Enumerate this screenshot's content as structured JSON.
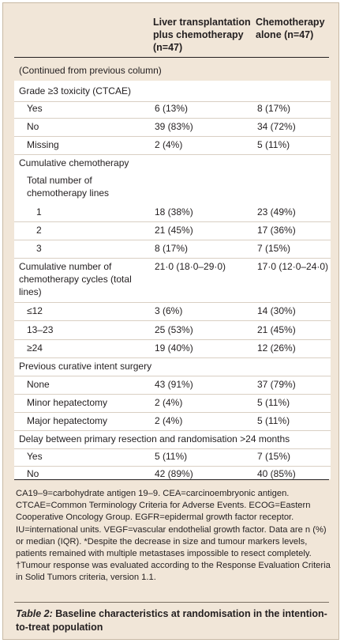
{
  "header": {
    "col1": "Liver transplantation plus chemotherapy (n=47)",
    "col2": "Chemotherapy alone (n=47)"
  },
  "continued": "(Continued from previous column)",
  "rows": [
    {
      "label": "Grade ≥3 toxicity (CTCAE)",
      "v1": "",
      "v2": ""
    },
    {
      "label": "Yes",
      "v1": "6 (13%)",
      "v2": "8 (17%)"
    },
    {
      "label": "No",
      "v1": "39 (83%)",
      "v2": "34 (72%)"
    },
    {
      "label": "Missing",
      "v1": "2 (4%)",
      "v2": "5 (11%)"
    },
    {
      "label": "Cumulative chemotherapy",
      "v1": "",
      "v2": ""
    },
    {
      "label": "Total number of chemotherapy lines",
      "v1": "",
      "v2": ""
    },
    {
      "label": "1",
      "v1": "18 (38%)",
      "v2": "23 (49%)"
    },
    {
      "label": "2",
      "v1": "21 (45%)",
      "v2": "17 (36%)"
    },
    {
      "label": "3",
      "v1": "8 (17%)",
      "v2": "7 (15%)"
    },
    {
      "label": "Cumulative number of chemotherapy cycles (total lines)",
      "v1": "21·0 (18·0–29·0)",
      "v2": "17·0 (12·0–24·0)"
    },
    {
      "label": "≤12",
      "v1": "3 (6%)",
      "v2": "14 (30%)"
    },
    {
      "label": "13–23",
      "v1": "25 (53%)",
      "v2": "21 (45%)"
    },
    {
      "label": "≥24",
      "v1": "19 (40%)",
      "v2": "12 (26%)"
    },
    {
      "label": "Previous curative intent surgery",
      "v1": "",
      "v2": ""
    },
    {
      "label": "None",
      "v1": "43 (91%)",
      "v2": "37 (79%)"
    },
    {
      "label": "Minor hepatectomy",
      "v1": "2 (4%)",
      "v2": "5 (11%)"
    },
    {
      "label": "Major hepatectomy",
      "v1": "2 (4%)",
      "v2": "5 (11%)"
    },
    {
      "label": "Delay between primary resection and randomisation >24 months",
      "v1": "",
      "v2": ""
    },
    {
      "label": "Yes",
      "v1": "5 (11%)",
      "v2": "7 (15%)"
    },
    {
      "label": "No",
      "v1": "42 (89%)",
      "v2": "40 (85%)"
    }
  ],
  "footnotes": "CA19–9=carbohydrate antigen 19–9. CEA=carcinoembryonic antigen. CTCAE=Common Terminology Criteria for Adverse Events. ECOG=Eastern Cooperative Oncology Group. EGFR=epidermal growth factor receptor. IU=international units. VEGF=vascular endothelial growth factor. Data are n (%) or median (IQR). *Despite the decrease in size and tumour markers levels, patients remained with multiple metastases impossible to resect completely. †Tumour response was evaluated according to the Response Evaluation Criteria in Solid Tumors criteria, version 1.1.",
  "caption": {
    "label": "Table 2:",
    "text": " Baseline characteristics at randomisation in the intention-to-treat population"
  }
}
